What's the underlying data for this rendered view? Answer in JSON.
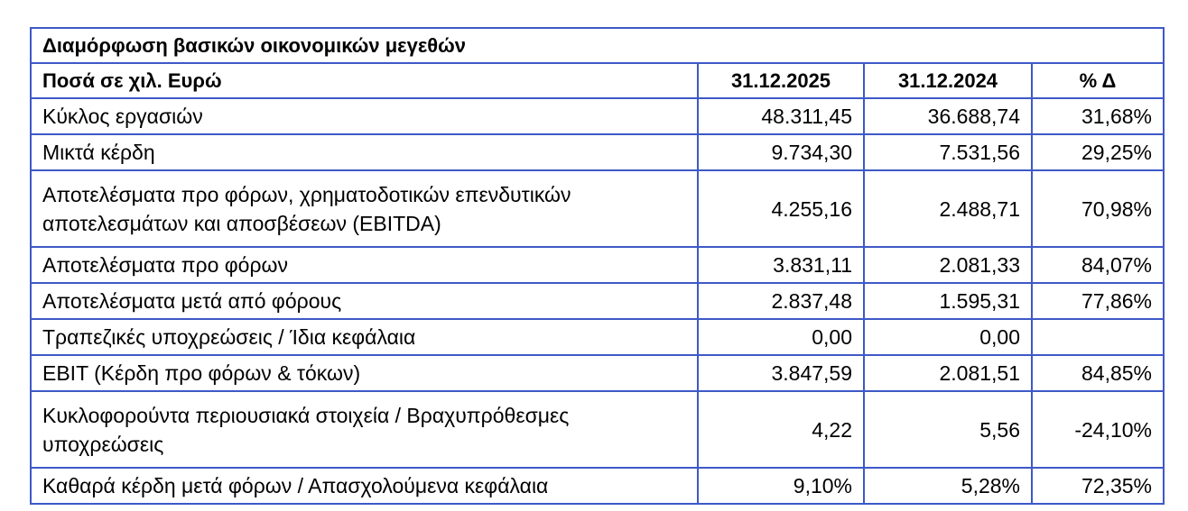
{
  "table": {
    "title": "Διαμόρφωση βασικών οικονομικών μεγεθών",
    "headers": [
      "Ποσά σε χιλ. Ευρώ",
      "31.12.2025",
      "31.12.2024",
      "% Δ"
    ],
    "rows": [
      {
        "label": "Κύκλος εργασιών",
        "v2025": "48.311,45",
        "v2024": "36.688,74",
        "delta": "31,68%"
      },
      {
        "label": "Μικτά κέρδη",
        "v2025": "9.734,30",
        "v2024": "7.531,56",
        "delta": "29,25%"
      },
      {
        "label_line1": "Αποτελέσματα προ φόρων, χρηματοδοτικών επενδυτικών",
        "label_line2": "αποτελεσμάτων και αποσβέσεων (EBITDA)",
        "v2025": "4.255,16",
        "v2024": "2.488,71",
        "delta": "70,98%"
      },
      {
        "label": "Αποτελέσματα προ φόρων",
        "v2025": "3.831,11",
        "v2024": "2.081,33",
        "delta": "84,07%"
      },
      {
        "label": "Αποτελέσματα μετά από φόρους",
        "v2025": "2.837,48",
        "v2024": "1.595,31",
        "delta": "77,86%"
      },
      {
        "label": "Τραπεζικές υποχρεώσεις / Ίδια κεφάλαια",
        "v2025": "0,00",
        "v2024": "0,00",
        "delta": ""
      },
      {
        "label": "EBIT (Κέρδη προ φόρων & τόκων)",
        "v2025": "3.847,59",
        "v2024": "2.081,51",
        "delta": "84,85%"
      },
      {
        "label_line1": "Κυκλοφορούντα περιουσιακά στοιχεία / Βραχυπρόθεσμες",
        "label_line2": "υποχρεώσεις",
        "v2025": "4,22",
        "v2024": "5,56",
        "delta": "-24,10%"
      },
      {
        "label": "Καθαρά κέρδη μετά φόρων / Απασχολούμενα κεφάλαια",
        "v2025": "9,10%",
        "v2024": "5,28%",
        "delta": "72,35%"
      }
    ]
  }
}
